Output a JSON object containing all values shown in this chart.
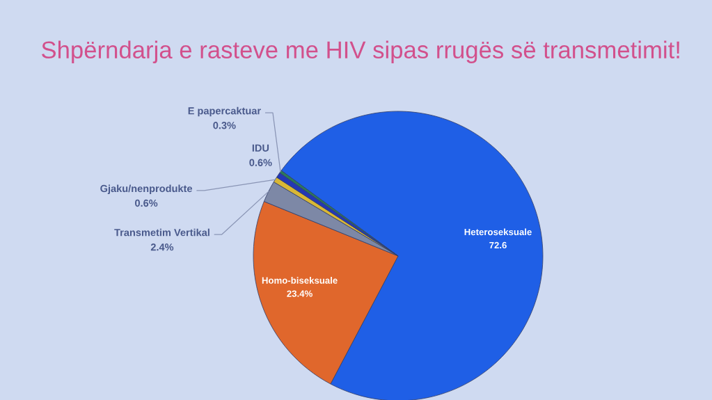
{
  "chart_data": {
    "type": "pie",
    "title": "Shpërndarja e rasteve me HIV sipas rrugës së transmetimit!",
    "categories": [
      "Heteroseksuale",
      "Homo-biseksuale",
      "Transmetim Vertikal",
      "Gjaku/nenprodukte",
      "IDU",
      "E papercaktuar"
    ],
    "values": [
      72.6,
      23.4,
      2.4,
      0.6,
      0.6,
      0.3
    ],
    "value_labels": [
      "72.6",
      "23.4%",
      "2.4%",
      "0.6%",
      "0.6%",
      "0.3%"
    ],
    "colors": [
      "#1f5fe6",
      "#e0672c",
      "#7d88a6",
      "#d9b735",
      "#2337b5",
      "#2b7a5c"
    ]
  }
}
